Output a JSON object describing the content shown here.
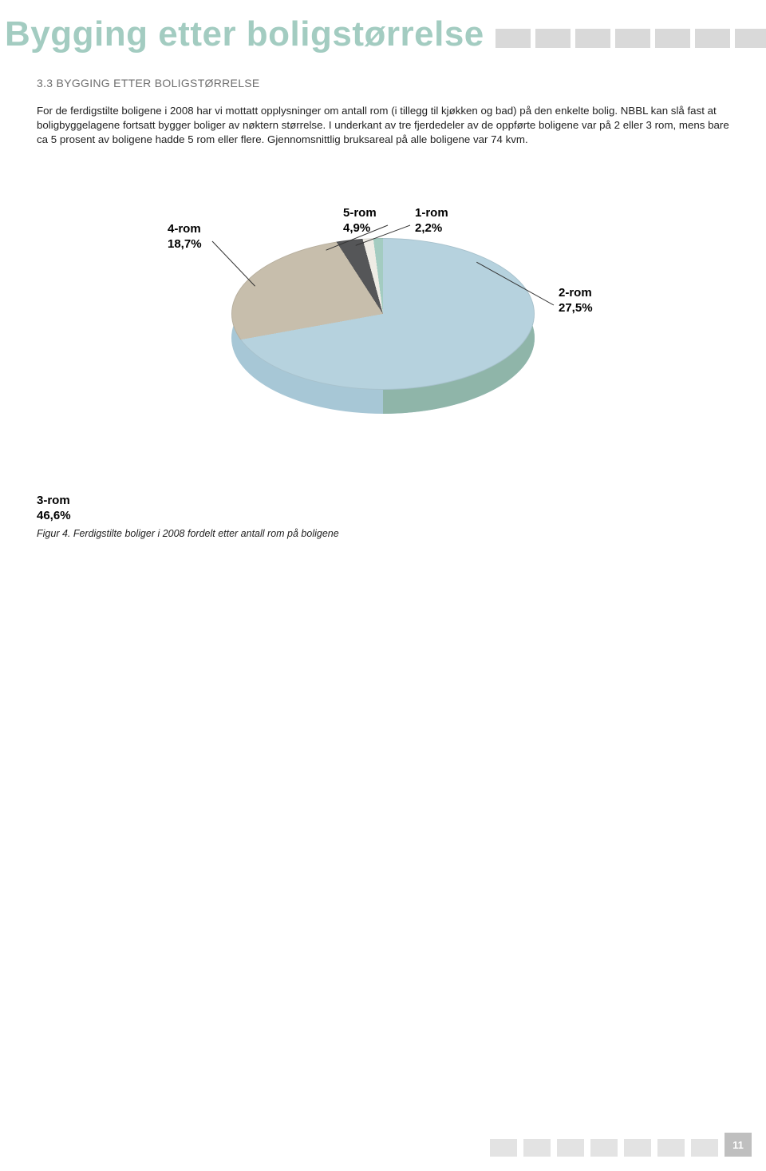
{
  "page": {
    "title": "Bygging etter boligstørrelse",
    "section_heading": "3.3 BYGGING ETTER BOLIGSTØRRELSE",
    "paragraph": "For de ferdigstilte boligene i 2008 har vi mottatt opplysninger om antall rom (i tillegg til kjøkken og bad) på den enkelte bolig. NBBL kan slå fast at boligbyggelagene fortsatt bygger boliger av nøktern størrelse. I underkant av tre fjerdedeler av de oppførte boligene var på 2 eller 3 rom, mens bare ca 5 prosent av boligene hadde 5 rom eller flere. Gjennomsnittlig bruksareal på alle boligene var 74 kvm.",
    "page_number": "11"
  },
  "chart": {
    "type": "pie",
    "slices": [
      {
        "key": "3rom",
        "label_line1": "3-rom",
        "label_line2": "46,6%",
        "value": 46.6,
        "color": "#b6d2de"
      },
      {
        "key": "4rom",
        "label_line1": "4-rom",
        "label_line2": "18,7%",
        "value": 18.7,
        "color": "#c7beac"
      },
      {
        "key": "5rom",
        "label_line1": "5-rom",
        "label_line2": "4,9%",
        "value": 4.9,
        "color": "#555658"
      },
      {
        "key": "1rom",
        "label_line1": "1-rom",
        "label_line2": "2,2%",
        "value": 2.2,
        "color": "#eeece5"
      },
      {
        "key": "2rom",
        "label_line1": "2-rom",
        "label_line2": "27,5%",
        "value": 27.5,
        "color": "#a3ccc1"
      }
    ],
    "side_color_left": "#a7c7d6",
    "side_color_right": "#8fb5a9",
    "start_angle_deg": 92
  },
  "caption": {
    "below_label_line1": "3-rom",
    "below_label_line2": "46,6%",
    "text": "Figur 4. Ferdigstilte boliger i 2008 fordelt etter antall rom på boligene"
  },
  "footer": {
    "square_colors": [
      "#e3e3e3",
      "#e3e3e3",
      "#e3e3e3",
      "#e3e3e3",
      "#e3e3e3",
      "#e3e3e3",
      "#e3e3e3"
    ],
    "page_box_color": "#bfbfbf"
  },
  "title_squares": {
    "color": "#d9d9d9",
    "count": 12
  }
}
